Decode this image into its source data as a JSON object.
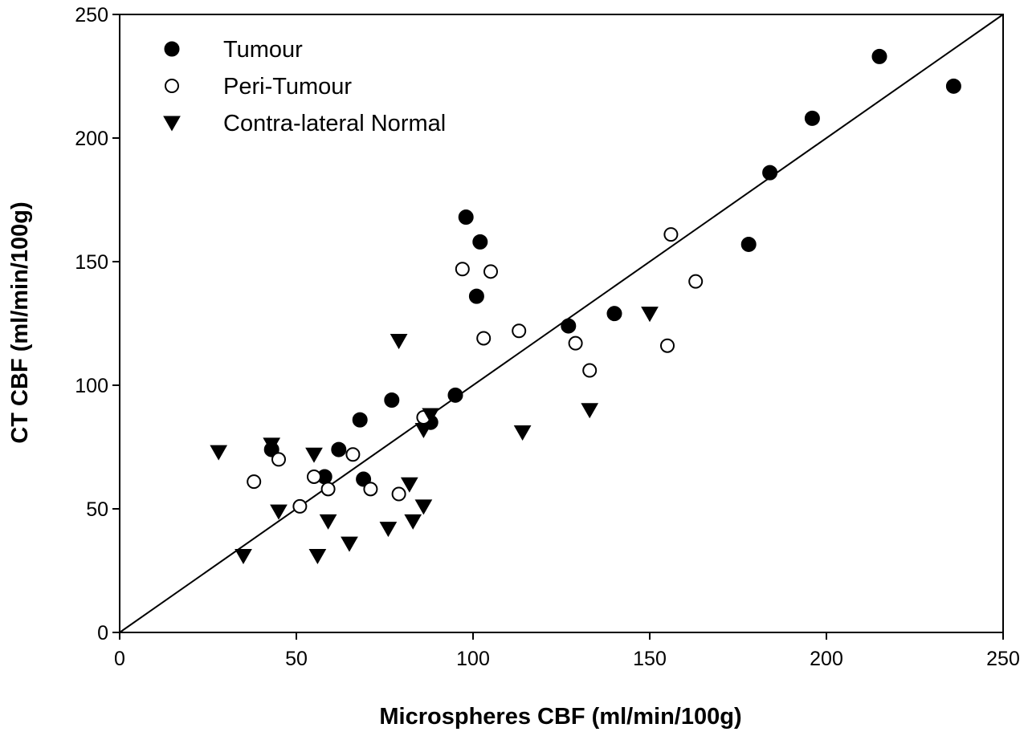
{
  "chart_data": {
    "type": "scatter",
    "title": "",
    "xlabel": "Microspheres CBF (ml/min/100g)",
    "ylabel": "CT CBF (ml/min/100g)",
    "xlim": [
      0,
      250
    ],
    "ylim": [
      0,
      250
    ],
    "xticks": [
      "0",
      "50",
      "100",
      "150",
      "200",
      "250"
    ],
    "yticks": [
      "0",
      "50",
      "100",
      "150",
      "200",
      "250"
    ],
    "grid": false,
    "legend_position": "top-left",
    "reference_line": {
      "type": "identity",
      "from": [
        0,
        0
      ],
      "to": [
        250,
        250
      ]
    },
    "series": [
      {
        "name": "Tumour",
        "marker": "filled-circle",
        "points": [
          [
            43,
            74
          ],
          [
            58,
            63
          ],
          [
            62,
            74
          ],
          [
            68,
            86
          ],
          [
            69,
            62
          ],
          [
            77,
            94
          ],
          [
            88,
            85
          ],
          [
            95,
            96
          ],
          [
            98,
            168
          ],
          [
            101,
            136
          ],
          [
            102,
            158
          ],
          [
            127,
            124
          ],
          [
            140,
            129
          ],
          [
            178,
            157
          ],
          [
            184,
            186
          ],
          [
            196,
            208
          ],
          [
            215,
            233
          ],
          [
            236,
            221
          ]
        ]
      },
      {
        "name": "Peri-Tumour",
        "marker": "open-circle",
        "points": [
          [
            38,
            61
          ],
          [
            45,
            70
          ],
          [
            51,
            51
          ],
          [
            55,
            63
          ],
          [
            59,
            58
          ],
          [
            66,
            72
          ],
          [
            71,
            58
          ],
          [
            79,
            56
          ],
          [
            86,
            87
          ],
          [
            97,
            147
          ],
          [
            103,
            119
          ],
          [
            105,
            146
          ],
          [
            113,
            122
          ],
          [
            129,
            117
          ],
          [
            133,
            106
          ],
          [
            155,
            116
          ],
          [
            156,
            161
          ],
          [
            163,
            142
          ]
        ]
      },
      {
        "name": "Contra-lateral Normal",
        "marker": "filled-triangle-down",
        "points": [
          [
            28,
            73
          ],
          [
            35,
            31
          ],
          [
            43,
            76
          ],
          [
            45,
            49
          ],
          [
            55,
            72
          ],
          [
            56,
            31
          ],
          [
            59,
            45
          ],
          [
            65,
            36
          ],
          [
            76,
            42
          ],
          [
            79,
            118
          ],
          [
            82,
            60
          ],
          [
            83,
            45
          ],
          [
            86,
            82
          ],
          [
            86,
            51
          ],
          [
            88,
            88
          ],
          [
            114,
            81
          ],
          [
            133,
            90
          ],
          [
            150,
            129
          ]
        ]
      }
    ]
  }
}
